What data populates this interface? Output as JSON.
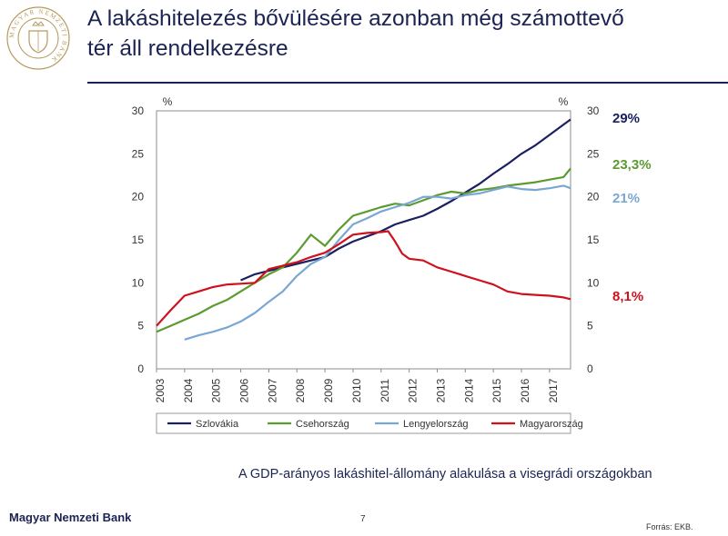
{
  "header": {
    "title_line1": "A lakáshitelezés bővülésére azonban még számottevő",
    "title_line2": "tér áll rendelkezésre"
  },
  "logo": {
    "icon": "mnb-seal-icon",
    "ring_text": "MAGYAR NEMZETI BANK"
  },
  "caption": "A GDP-arányos lakáshitel-állomány alakulása a visegrádi országokban",
  "footer": {
    "bank": "Magyar Nemzeti Bank",
    "page": "7",
    "source": "Forrás: EKB."
  },
  "colors": {
    "navy": "#1b2353",
    "slovakia": "#1b2160",
    "czech": "#5b9b2f",
    "poland": "#79a7d3",
    "hungary": "#d0101b"
  },
  "chart_data": {
    "type": "line",
    "y_unit_left": "%",
    "y_unit_right": "%",
    "ylim": [
      0,
      30
    ],
    "yticks": [
      0,
      5,
      10,
      15,
      20,
      25,
      30
    ],
    "xlim": [
      2003,
      2017.75
    ],
    "xticks": [
      "2003",
      "2004",
      "2005",
      "2006",
      "2007",
      "2008",
      "2009",
      "2010",
      "2011",
      "2012",
      "2013",
      "2014",
      "2015",
      "2016",
      "2017"
    ],
    "legend_position": "bottom",
    "series": [
      {
        "name": "Szlovákia",
        "color": "#1b2160",
        "end_label": "29%",
        "x": [
          2006,
          2006.5,
          2007,
          2007.5,
          2008,
          2008.5,
          2009,
          2009.5,
          2010,
          2010.5,
          2011,
          2011.5,
          2012,
          2012.5,
          2013,
          2013.5,
          2014,
          2014.5,
          2015,
          2015.5,
          2016,
          2016.5,
          2017,
          2017.5,
          2017.75
        ],
        "y": [
          10.3,
          11.0,
          11.4,
          11.8,
          12.2,
          12.6,
          13.0,
          14.0,
          14.8,
          15.4,
          16.0,
          16.8,
          17.3,
          17.8,
          18.6,
          19.5,
          20.5,
          21.5,
          22.7,
          23.8,
          25.0,
          26.0,
          27.2,
          28.4,
          29.0
        ]
      },
      {
        "name": "Csehország",
        "color": "#5b9b2f",
        "end_label": "23,3%",
        "x": [
          2003,
          2003.5,
          2004,
          2004.5,
          2005,
          2005.5,
          2006,
          2006.5,
          2007,
          2007.5,
          2008,
          2008.5,
          2009,
          2009.5,
          2010,
          2010.5,
          2011,
          2011.5,
          2012,
          2012.5,
          2013,
          2013.5,
          2014,
          2014.5,
          2015,
          2015.5,
          2016,
          2016.5,
          2017,
          2017.5,
          2017.75
        ],
        "y": [
          4.3,
          5.0,
          5.7,
          6.4,
          7.3,
          8.0,
          9.0,
          10.0,
          11.0,
          11.8,
          13.5,
          15.6,
          14.3,
          16.2,
          17.8,
          18.3,
          18.8,
          19.2,
          19.0,
          19.6,
          20.2,
          20.6,
          20.4,
          20.8,
          21.0,
          21.3,
          21.5,
          21.7,
          22.0,
          22.3,
          23.3
        ]
      },
      {
        "name": "Lengyelország",
        "color": "#79a7d3",
        "end_label": "21%",
        "x": [
          2004,
          2004.5,
          2005,
          2005.5,
          2006,
          2006.5,
          2007,
          2007.5,
          2008,
          2008.5,
          2009,
          2009.5,
          2010,
          2010.5,
          2011,
          2011.5,
          2012,
          2012.5,
          2013,
          2013.5,
          2014,
          2014.5,
          2015,
          2015.5,
          2016,
          2016.5,
          2017,
          2017.5,
          2017.75
        ],
        "y": [
          3.4,
          3.9,
          4.3,
          4.8,
          5.5,
          6.5,
          7.8,
          9.0,
          10.8,
          12.2,
          13.0,
          15.0,
          16.8,
          17.5,
          18.3,
          18.8,
          19.3,
          20.0,
          20.0,
          19.8,
          20.2,
          20.4,
          20.8,
          21.2,
          20.9,
          20.8,
          21.0,
          21.3,
          21.0
        ]
      },
      {
        "name": "Magyarország",
        "color": "#d0101b",
        "end_label": "8,1%",
        "x": [
          2003,
          2003.5,
          2004,
          2004.5,
          2005,
          2005.5,
          2006,
          2006.5,
          2007,
          2007.5,
          2008,
          2008.5,
          2009,
          2009.5,
          2010,
          2010.5,
          2011,
          2011.25,
          2011.5,
          2011.75,
          2012,
          2012.5,
          2013,
          2013.5,
          2014,
          2014.5,
          2015,
          2015.5,
          2016,
          2016.5,
          2017,
          2017.5,
          2017.75
        ],
        "y": [
          5.0,
          6.8,
          8.5,
          9.0,
          9.5,
          9.8,
          9.9,
          10.0,
          11.6,
          12.0,
          12.4,
          13.0,
          13.5,
          14.5,
          15.6,
          15.8,
          15.9,
          16.0,
          14.8,
          13.4,
          12.8,
          12.6,
          11.8,
          11.3,
          10.8,
          10.3,
          9.8,
          9.0,
          8.7,
          8.6,
          8.5,
          8.3,
          8.1
        ]
      }
    ]
  }
}
